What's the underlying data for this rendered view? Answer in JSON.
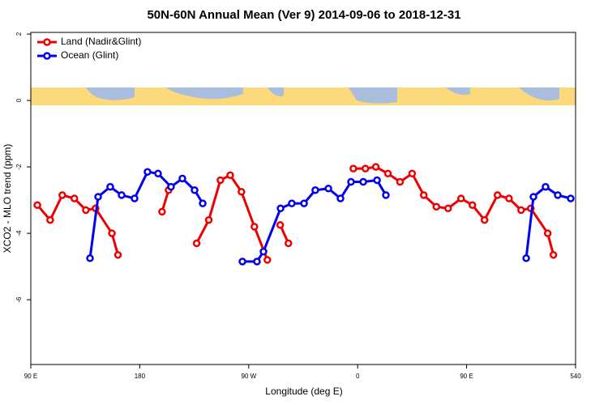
{
  "chart_data": {
    "type": "line",
    "title": "50N-60N Annual Mean (Ver 9)   2014-09-06 to 2018-12-31",
    "xlabel": "Longitude (deg E)",
    "ylabel": "XCO2 - MLO trend (ppm)",
    "xlim": [
      90,
      540
    ],
    "ylim": [
      -7.95,
      2.05
    ],
    "xticks": [
      {
        "value": 90,
        "label": "90 E"
      },
      180,
      {
        "value": 270,
        "label": "90 W"
      },
      {
        "value": 360,
        "label": "0"
      },
      {
        "value": 450,
        "label": "90 E"
      },
      540
    ],
    "yticks": [
      2,
      0,
      -2,
      -4,
      -6
    ],
    "legend": "top-left",
    "series": [
      {
        "name": "Land (Nadir&Glint)",
        "color": "#ee0000",
        "x": [
          95.4,
          106,
          116,
          126,
          135.5,
          143.5,
          157,
          162,
          null,
          198.4,
          203.8,
          null,
          227,
          237,
          246.6,
          254.7,
          264,
          274.7,
          285.4,
          null,
          296,
          302.8,
          null,
          356.4,
          366.4,
          375,
          385,
          395,
          405,
          414.6,
          425,
          434.7,
          445.4,
          454.8,
          464.8,
          475.5,
          485,
          495,
          503,
          517,
          521.7
        ],
        "values": [
          -3.15,
          -3.6,
          -2.85,
          -2.95,
          -3.3,
          -3.25,
          -4.0,
          -4.65,
          null,
          -3.35,
          -2.7,
          null,
          -4.3,
          -3.6,
          -2.4,
          -2.25,
          -2.75,
          -3.8,
          -4.8,
          null,
          -3.75,
          -4.3,
          null,
          -2.05,
          -2.05,
          -2.0,
          -2.2,
          -2.45,
          -2.2,
          -2.85,
          -3.2,
          -3.25,
          -2.95,
          -3.15,
          -3.6,
          -2.85,
          -2.95,
          -3.3,
          -3.25,
          -4.0,
          -4.65
        ]
      },
      {
        "name": "Ocean (Glint)",
        "color": "#0000ee",
        "x": [
          138.9,
          145.6,
          155.6,
          165,
          175.7,
          186.4,
          195.1,
          205.8,
          215.2,
          225.3,
          232,
          null,
          264.8,
          276.8,
          282.2,
          296.3,
          305.6,
          315.7,
          325,
          335.8,
          345.8,
          354.5,
          364.6,
          376,
          383.3,
          null,
          499.2,
          505.2,
          515.2,
          525.3,
          536
        ],
        "values": [
          -4.75,
          -2.9,
          -2.6,
          -2.85,
          -2.95,
          -2.15,
          -2.2,
          -2.6,
          -2.35,
          -2.7,
          -3.1,
          null,
          -4.85,
          -4.85,
          -4.55,
          -3.25,
          -3.1,
          -3.1,
          -2.7,
          -2.65,
          -2.95,
          -2.45,
          -2.45,
          -2.4,
          -2.85,
          null,
          -4.75,
          -2.9,
          -2.6,
          -2.85,
          -2.95
        ]
      }
    ]
  }
}
